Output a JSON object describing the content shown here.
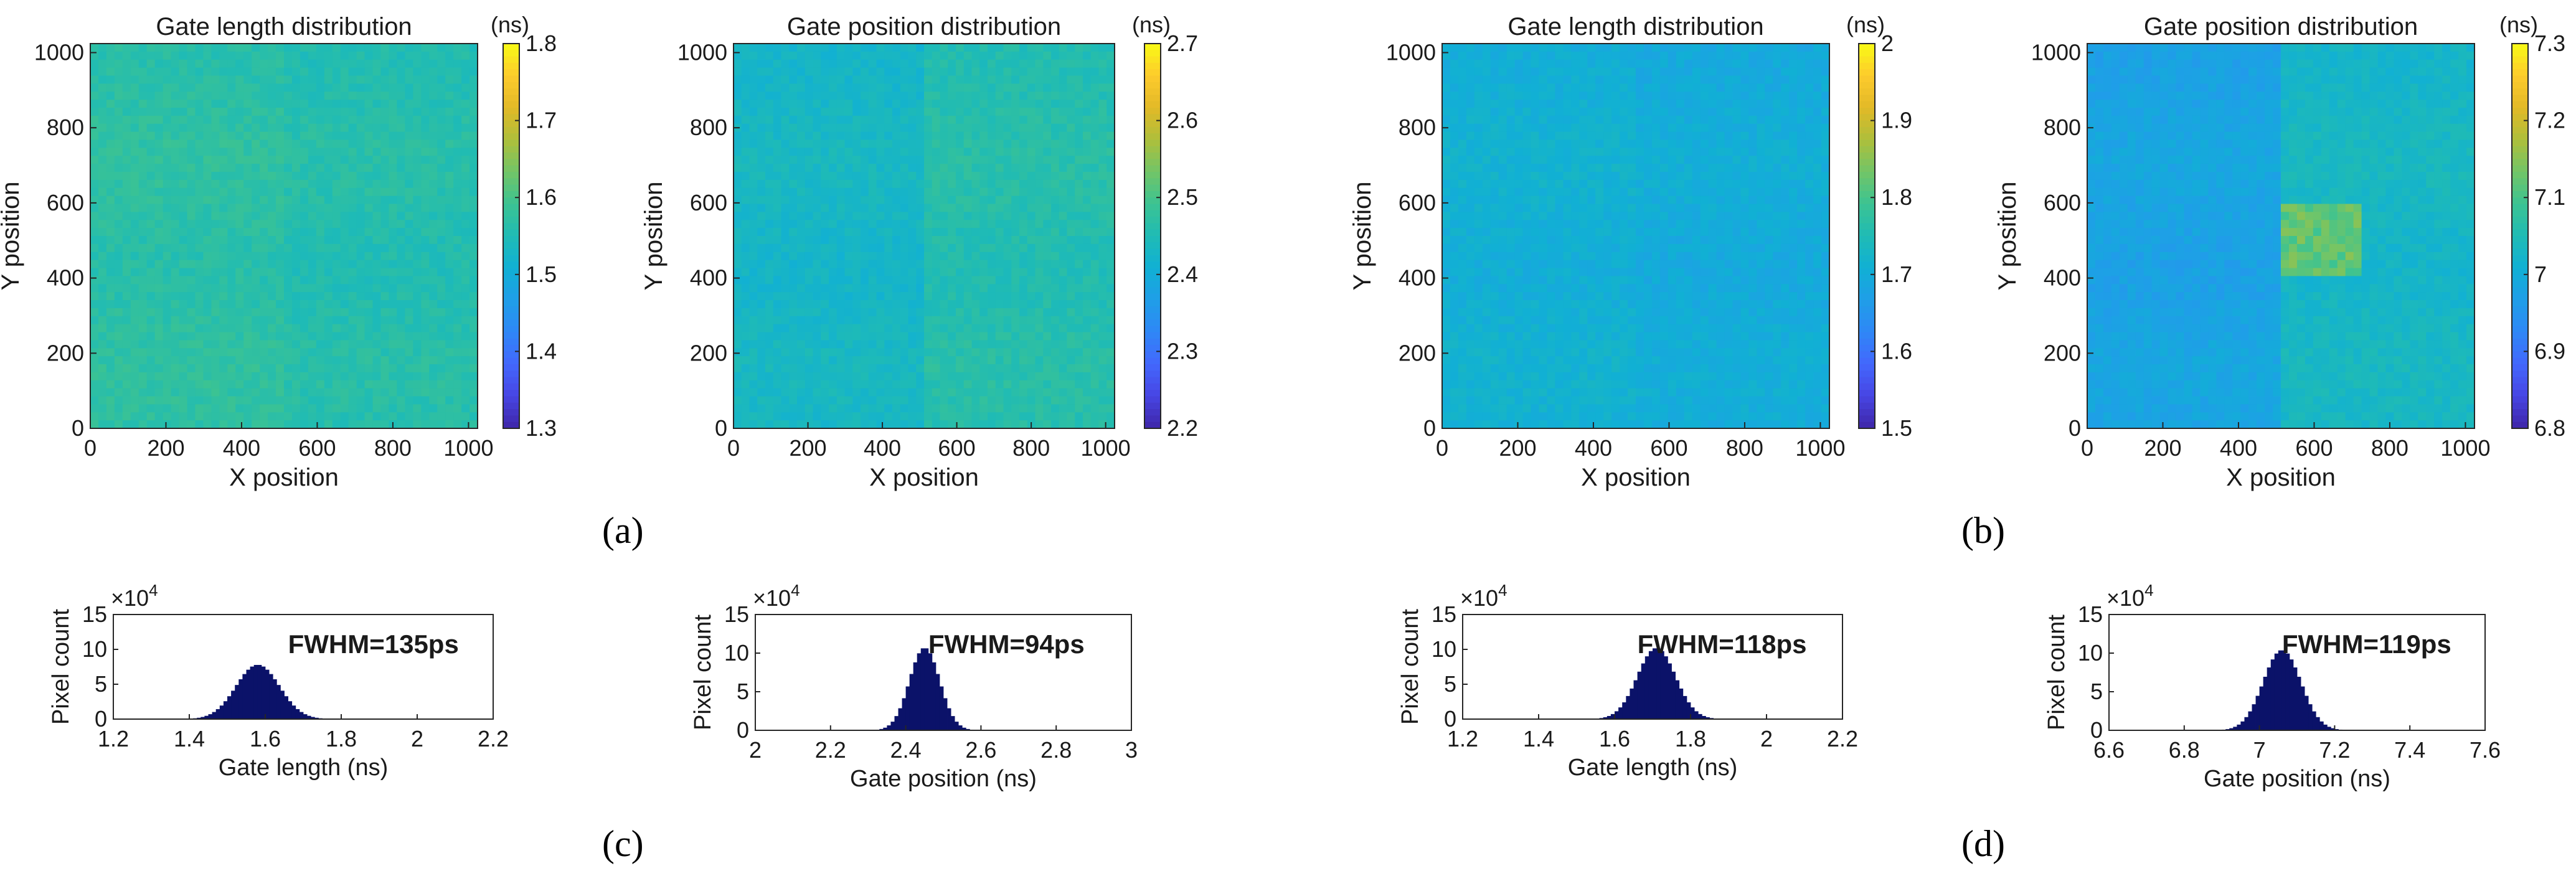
{
  "panel_labels": [
    "(a)",
    "(b)",
    "(c)",
    "(d)"
  ],
  "colors": {
    "colormap": [
      "#3e26a8",
      "#4745e3",
      "#4367fd",
      "#2f87f6",
      "#1f9ee8",
      "#11b0d4",
      "#1fbbb5",
      "#3cc392",
      "#72c567",
      "#aebf3b",
      "#e2b927",
      "#fdcb2c",
      "#f9fb15"
    ],
    "histogram_fill": "#0b1269",
    "axis": "#262626"
  },
  "chart_data": [
    {
      "type": "heatmap",
      "id": "map-a1",
      "title": "Gate length distribution",
      "xlabel": "X position",
      "ylabel": "Y position",
      "xlim": [
        0,
        1024
      ],
      "ylim": [
        0,
        1024
      ],
      "xticks": [
        0,
        200,
        400,
        600,
        800,
        1000
      ],
      "yticks": [
        0,
        200,
        400,
        600,
        800,
        1000
      ],
      "colorbar": {
        "unit": "(ns)",
        "min": 1.3,
        "max": 1.8,
        "ticks": [
          "1.3",
          "1.4",
          "1.5",
          "1.6",
          "1.7",
          "1.8"
        ]
      },
      "mean": 1.57,
      "right_half_shift": -0.01,
      "hotspot": null
    },
    {
      "type": "heatmap",
      "id": "map-a2",
      "title": "Gate position distribution",
      "xlabel": "X position",
      "ylabel": "Y position",
      "xlim": [
        0,
        1024
      ],
      "ylim": [
        0,
        1024
      ],
      "xticks": [
        0,
        200,
        400,
        600,
        800,
        1000
      ],
      "yticks": [
        0,
        200,
        400,
        600,
        800,
        1000
      ],
      "colorbar": {
        "unit": "(ns)",
        "min": 2.2,
        "max": 2.7,
        "ticks": [
          "2.2",
          "2.3",
          "2.4",
          "2.5",
          "2.6",
          "2.7"
        ]
      },
      "mean": 2.43,
      "right_half_shift": 0.03,
      "hotspot": null
    },
    {
      "type": "heatmap",
      "id": "map-b1",
      "title": "Gate length distribution",
      "xlabel": "X position",
      "ylabel": "Y position",
      "xlim": [
        0,
        1024
      ],
      "ylim": [
        0,
        1024
      ],
      "xticks": [
        0,
        200,
        400,
        600,
        800,
        1000
      ],
      "yticks": [
        0,
        200,
        400,
        600,
        800,
        1000
      ],
      "colorbar": {
        "unit": "(ns)",
        "min": 1.5,
        "max": 2,
        "ticks": [
          "1.5",
          "1.6",
          "1.7",
          "1.8",
          "1.9",
          "2"
        ]
      },
      "mean": 1.71,
      "right_half_shift": -0.01,
      "hotspot": null
    },
    {
      "type": "heatmap",
      "id": "map-b2",
      "title": "Gate position distribution",
      "xlabel": "X position",
      "ylabel": "Y position",
      "xlim": [
        0,
        1024
      ],
      "ylim": [
        0,
        1024
      ],
      "xticks": [
        0,
        200,
        400,
        600,
        800,
        1000
      ],
      "yticks": [
        0,
        200,
        400,
        600,
        800,
        1000
      ],
      "colorbar": {
        "unit": "(ns)",
        "min": 6.8,
        "max": 7.3,
        "ticks": [
          "6.8",
          "6.9",
          "7",
          "7.1",
          "7.2",
          "7.3"
        ]
      },
      "mean": 6.98,
      "right_half_shift": 0.05,
      "hotspot": {
        "x": [
          520,
          720
        ],
        "y": [
          400,
          600
        ],
        "value": 7.12
      }
    },
    {
      "type": "bar",
      "id": "hist-c1",
      "xlabel": "Gate length (ns)",
      "ylabel": "Pixel count",
      "exponent": "×10",
      "exponent_power": "4",
      "annotation": "FWHM=135ps",
      "xlim": [
        1.2,
        2.2
      ],
      "ylim": [
        0,
        15
      ],
      "xticks": [
        "1.2",
        "1.4",
        "1.6",
        "1.8",
        "2",
        "2.2"
      ],
      "yticks": [
        "0",
        "5",
        "10",
        "15"
      ],
      "center": 1.58,
      "sigma": 0.057,
      "peak": 7.8
    },
    {
      "type": "bar",
      "id": "hist-c2",
      "xlabel": "Gate position (ns)",
      "ylabel": "Pixel count",
      "exponent": "×10",
      "exponent_power": "4",
      "annotation": "FWHM=94ps",
      "xlim": [
        2,
        3
      ],
      "ylim": [
        0,
        15
      ],
      "xticks": [
        "2",
        "2.2",
        "2.4",
        "2.6",
        "2.8",
        "3"
      ],
      "yticks": [
        "0",
        "5",
        "10",
        "15"
      ],
      "center": 2.45,
      "sigma": 0.04,
      "peak": 10.7
    },
    {
      "type": "bar",
      "id": "hist-d1",
      "xlabel": "Gate length (ns)",
      "ylabel": "Pixel count",
      "exponent": "×10",
      "exponent_power": "4",
      "annotation": "FWHM=118ps",
      "xlim": [
        1.2,
        2.2
      ],
      "ylim": [
        0,
        15
      ],
      "xticks": [
        "1.2",
        "1.4",
        "1.6",
        "1.8",
        "2",
        "2.2"
      ],
      "yticks": [
        "0",
        "5",
        "10",
        "15"
      ],
      "center": 1.71,
      "sigma": 0.05,
      "peak": 10.2
    },
    {
      "type": "bar",
      "id": "hist-d2",
      "xlabel": "Gate position (ns)",
      "ylabel": "Pixel count",
      "exponent": "×10",
      "exponent_power": "4",
      "annotation": "FWHM=119ps",
      "xlim": [
        6.6,
        7.6
      ],
      "ylim": [
        0,
        15
      ],
      "xticks": [
        "6.6",
        "6.8",
        "7",
        "7.2",
        "7.4",
        "7.6"
      ],
      "yticks": [
        "0",
        "5",
        "10",
        "15"
      ],
      "center": 7.06,
      "sigma": 0.05,
      "peak": 10.4
    }
  ]
}
